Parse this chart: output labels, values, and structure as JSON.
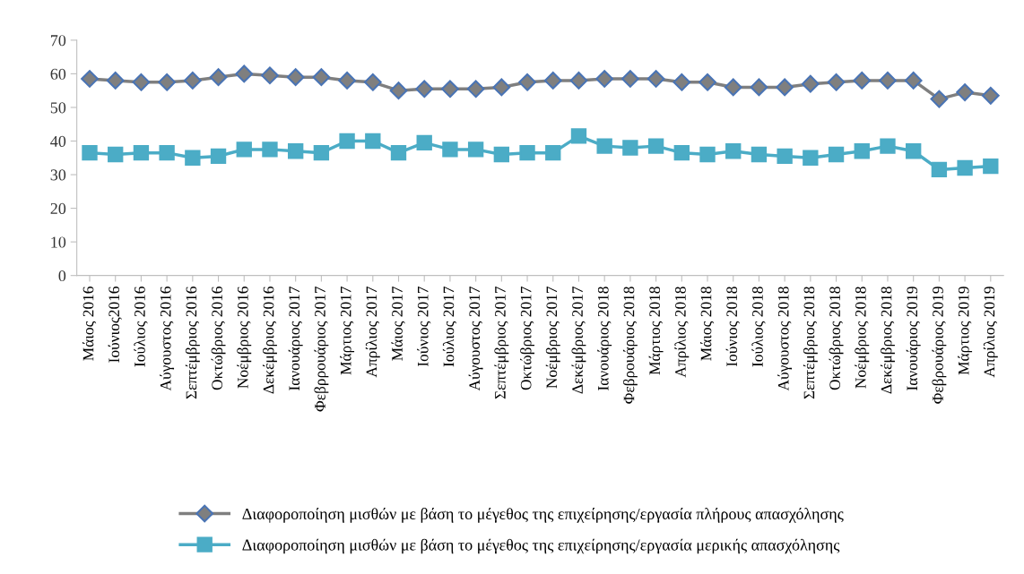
{
  "chart_data": {
    "type": "line",
    "categories": [
      "Μάιος 2016",
      "Ιούνιος2016",
      "Ιούλιος 2016",
      "Αύγουστος 2016",
      "Σεπτέμβριος 2016",
      "Οκτώβριος 2016",
      "Νοέμβριος 2016",
      "Δεκέμβριος 2016",
      "Ιανουάριος 2017",
      "Φεβρρουάριος 2017",
      "Μάρτιος 2017",
      "Απρίλιος 2017",
      "Μάιος 2017",
      "Ιούνιος 2017",
      "Ιούλιος 2017",
      "Αύγουστος 2017",
      "Σεπτέμβριος 2017",
      "Οκτώβριος 2017",
      "Νοέμβριος 2017",
      "Δεκέμβριος 2017",
      "Ιανουάριος 2018",
      "Φεβρουάριος 2018",
      "Μάρτιος 2018",
      "Απρίλιος 2018",
      "Μάιος 2018",
      "Ιούνιος 2018",
      "Ιούλιος 2018",
      "Αύγουστος 2018",
      "Σεπτέμβριος 2018",
      "Οκτώβριος 2018",
      "Νοέμβριος 2018",
      "Δεκέμβριος 2018",
      "Ιανουάριος 2019",
      "Φεβρουάριος 2019",
      "Μάρτιος 2019",
      "Απρίλιος 2019"
    ],
    "series": [
      {
        "name": "Διαφοροποίηση μισθών με βάση το μέγεθος της επιχείρησης/εργασία πλήρους απασχόλησης",
        "color": "#7f7f7f",
        "marker": "diamond",
        "values": [
          58.5,
          58,
          57.5,
          57.5,
          58,
          59,
          60,
          59.5,
          59,
          59,
          58,
          57.5,
          55,
          55.5,
          55.5,
          55.5,
          56,
          57.5,
          58,
          58,
          58.5,
          58.5,
          58.5,
          57.5,
          57.5,
          56,
          56,
          56,
          57,
          57.5,
          58,
          58,
          58,
          52.5,
          54.5,
          53.5
        ]
      },
      {
        "name": "Διαφοροποίηση μισθών με βάση το μέγεθος της επιχείρησης/εργασία μερικής απασχόλησης",
        "color": "#4bacc6",
        "marker": "square",
        "values": [
          36.5,
          36,
          36.5,
          36.5,
          35,
          35.5,
          37.5,
          37.5,
          37,
          36.5,
          40,
          40,
          36.5,
          39.5,
          37.5,
          37.5,
          36,
          36.5,
          36.5,
          41.5,
          38.5,
          38,
          38.5,
          36.5,
          36,
          37,
          36,
          35.5,
          35,
          36,
          37,
          38.5,
          37,
          31.5,
          32,
          32.5
        ]
      }
    ],
    "ylim": [
      0,
      70
    ],
    "yticks": [
      0,
      10,
      20,
      30,
      40,
      50,
      60,
      70
    ],
    "grid": false,
    "legend": "bottom",
    "line_style": "solid"
  }
}
